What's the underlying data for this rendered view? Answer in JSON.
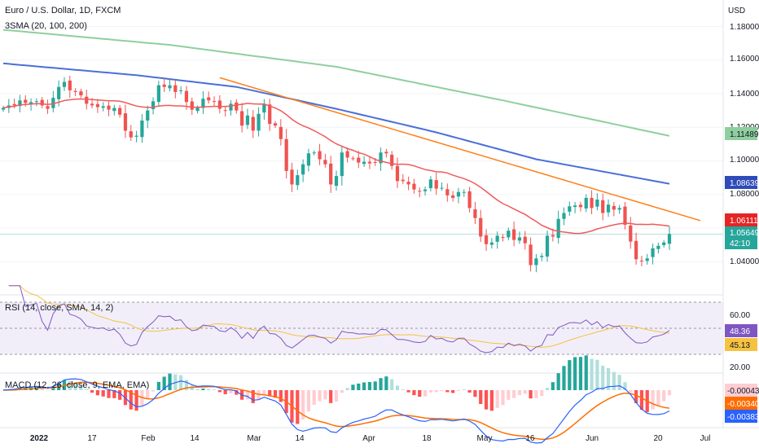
{
  "header": {
    "title": "Euro / U.S. Dollar, 1D, FXCM",
    "indicator": "3SMA (20, 100, 200)",
    "currency": "USD"
  },
  "colors": {
    "up": "#26a69a",
    "down": "#ef5350",
    "sma20": "#f05a5a",
    "sma100": "#4a6fd8",
    "sma200": "#8fcf9f",
    "trendline": "#ff7f17",
    "rsi": "#7e57c2",
    "rsi_ma": "#f5c242",
    "macd": "#2962ff",
    "signal": "#ff6d00",
    "price_line": "#b2dfdb"
  },
  "price_axis": {
    "ticks": [
      "1.18000",
      "1.16000",
      "1.14000",
      "1.12000",
      "1.10000",
      "1.08000",
      "1.04000"
    ]
  },
  "badges": {
    "sma200": "1.11489",
    "sma100": "1.08639",
    "sma20": "1.06111",
    "last_price": "1.05649",
    "countdown": "42:10"
  },
  "rsi_panel": {
    "label": "RSI (14, close, SMA, 14, 2)",
    "ticks": [
      "60.00",
      "20.00"
    ],
    "value": "48.36",
    "ma_value": "45.13"
  },
  "macd_panel": {
    "label": "MACD (12, 26, close, 9, EMA, EMA)",
    "histogram_value": "-0.00043",
    "signal_value": "-0.00340",
    "macd_value": "-0.00383"
  },
  "time_axis": [
    "2022",
    "17",
    "Feb",
    "14",
    "Mar",
    "14",
    "Apr",
    "18",
    "May",
    "16",
    "Jun",
    "20",
    "Jul"
  ],
  "chart_data": {
    "type": "candlestick",
    "title": "Euro / U.S. Dollar, 1D, FXCM",
    "ylim": [
      1.03,
      1.187
    ],
    "x": "trading days, early Jan 2022 to 21 Jun 2022",
    "close": [
      1.1315,
      1.133,
      1.133,
      1.136,
      1.1345,
      1.135,
      1.1355,
      1.133,
      1.131,
      1.1375,
      1.144,
      1.147,
      1.142,
      1.141,
      1.139,
      1.134,
      1.133,
      1.132,
      1.1325,
      1.1305,
      1.1315,
      1.1275,
      1.118,
      1.114,
      1.115,
      1.124,
      1.13,
      1.1355,
      1.145,
      1.144,
      1.145,
      1.141,
      1.142,
      1.135,
      1.1305,
      1.1315,
      1.137,
      1.136,
      1.1355,
      1.131,
      1.13,
      1.134,
      1.13,
      1.121,
      1.127,
      1.118,
      1.128,
      1.134,
      1.122,
      1.121,
      1.113,
      1.094,
      1.086,
      1.0915,
      1.098,
      1.1045,
      1.105,
      1.101,
      1.098,
      1.086,
      1.091,
      1.105,
      1.102,
      1.1015,
      1.099,
      1.0995,
      1.0985,
      1.099,
      1.105,
      1.1045,
      1.097,
      1.088,
      1.088,
      1.086,
      1.083,
      1.082,
      1.083,
      1.089,
      1.0835,
      1.084,
      1.0795,
      1.078,
      1.0815,
      1.0815,
      1.072,
      1.066,
      1.055,
      1.0505,
      1.0515,
      1.0555,
      1.0545,
      1.0585,
      1.053,
      1.0545,
      1.051,
      1.038,
      1.042,
      1.0435,
      1.0555,
      1.055,
      1.0655,
      1.069,
      1.073,
      1.0735,
      1.0725,
      1.078,
      1.072,
      1.077,
      1.069,
      1.074,
      1.071,
      1.072,
      1.062,
      1.052,
      1.0415,
      1.0405,
      1.042,
      1.048,
      1.0495,
      1.0515,
      1.0565
    ],
    "sma20_end": 1.06111,
    "sma100_end": 1.08639,
    "sma200_end": 1.11489,
    "last_price": 1.05649,
    "rsi_last": 48.36,
    "rsi_ma_last": 45.13,
    "macd_last": -0.00383,
    "signal_last": -0.0034,
    "histogram_last": -0.00043
  }
}
